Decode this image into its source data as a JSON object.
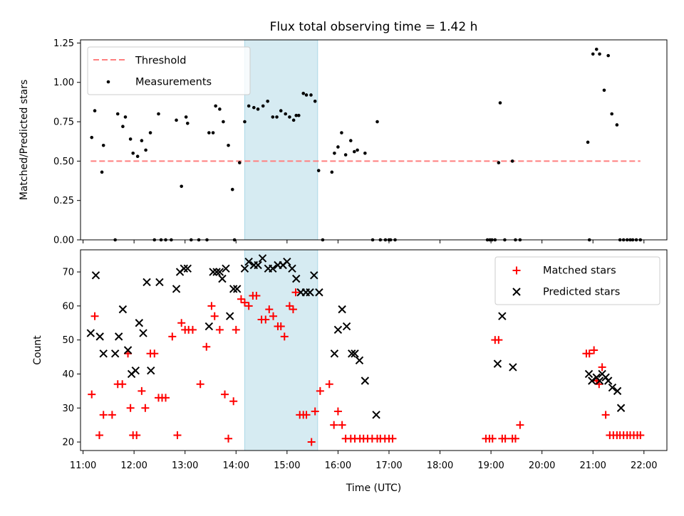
{
  "colors": {
    "threshold": "#ff7f7f",
    "measurements": "#000000",
    "matched": "#ff0000",
    "predicted": "#000000",
    "shade": "#add8e6"
  },
  "chart_data": [
    {
      "type": "scatter",
      "title": "Flux total observing time = 1.42 h",
      "xlabel": "",
      "ylabel": "Matched/Predicted stars",
      "xlim": [
        10.95,
        22.45
      ],
      "ylim": [
        0,
        1.27
      ],
      "yticks": [
        "0.00",
        "0.25",
        "0.50",
        "0.75",
        "1.00",
        "1.25"
      ],
      "shaded_span_x": [
        14.17,
        15.6
      ],
      "legend_position": "upper left",
      "threshold": {
        "name": "Threshold",
        "value": 0.5,
        "x": [
          11.15,
          21.93
        ]
      },
      "series": [
        {
          "name": "Measurements",
          "x": [
            11.17,
            11.23,
            11.37,
            11.4,
            11.63,
            11.68,
            11.78,
            11.83,
            11.93,
            11.98,
            12.07,
            12.15,
            12.23,
            12.32,
            12.4,
            12.48,
            12.53,
            12.62,
            12.73,
            12.83,
            12.93,
            13.02,
            13.05,
            13.12,
            13.27,
            13.43,
            13.47,
            13.55,
            13.6,
            13.68,
            13.75,
            13.85,
            13.93,
            13.97,
            14.07,
            14.17,
            14.25,
            14.35,
            14.43,
            14.53,
            14.62,
            14.72,
            14.8,
            14.88,
            14.97,
            15.05,
            15.13,
            15.18,
            15.23,
            15.32,
            15.38,
            15.47,
            15.55,
            15.62,
            15.7,
            15.88,
            15.93,
            16.0,
            16.07,
            16.15,
            16.25,
            16.32,
            16.38,
            16.53,
            16.68,
            16.77,
            16.83,
            16.93,
            17.0,
            17.03,
            17.12,
            18.93,
            18.98,
            19.02,
            19.08,
            19.15,
            19.18,
            19.27,
            19.42,
            19.48,
            19.57,
            20.9,
            20.93,
            21.0,
            21.07,
            21.13,
            21.22,
            21.3,
            21.37,
            21.47,
            21.53,
            21.6,
            21.67,
            21.73,
            21.78,
            21.85,
            21.93
          ],
          "y": [
            0.65,
            0.82,
            0.43,
            0.6,
            0.0,
            0.8,
            0.72,
            0.78,
            0.64,
            0.55,
            0.53,
            0.63,
            0.57,
            0.68,
            0.0,
            0.8,
            0.0,
            0.0,
            0.0,
            0.76,
            0.34,
            0.78,
            0.74,
            0.0,
            0.0,
            0.0,
            0.68,
            0.68,
            0.85,
            0.83,
            0.75,
            0.6,
            0.32,
            0.0,
            0.49,
            0.75,
            0.85,
            0.84,
            0.83,
            0.85,
            0.88,
            0.78,
            0.78,
            0.82,
            0.8,
            0.78,
            0.76,
            0.79,
            0.79,
            0.93,
            0.92,
            0.92,
            0.88,
            0.44,
            0.0,
            0.43,
            0.55,
            0.59,
            0.68,
            0.54,
            0.63,
            0.56,
            0.57,
            0.55,
            0.0,
            0.75,
            0.0,
            0.0,
            0.0,
            0.0,
            0.0,
            0.0,
            0.0,
            0.0,
            0.0,
            0.49,
            0.87,
            0.0,
            0.5,
            0.0,
            0.0,
            0.62,
            0.0,
            1.18,
            1.21,
            1.18,
            0.95,
            1.17,
            0.8,
            0.73,
            0.0,
            0.0,
            0.0,
            0.0,
            0.0,
            0.0,
            0.0
          ]
        }
      ]
    },
    {
      "type": "scatter",
      "title": "",
      "xlabel": "Time (UTC)",
      "ylabel": "Count",
      "xlim": [
        10.95,
        22.45
      ],
      "ylim": [
        17.5,
        76.5
      ],
      "yticks": [
        "20",
        "30",
        "40",
        "50",
        "60",
        "70"
      ],
      "xticks": [
        "11:00",
        "12:00",
        "13:00",
        "14:00",
        "15:00",
        "16:00",
        "17:00",
        "18:00",
        "19:00",
        "20:00",
        "21:00",
        "22:00"
      ],
      "shaded_span_x": [
        14.17,
        15.6
      ],
      "legend_position": "upper right",
      "series": [
        {
          "name": "Matched stars",
          "marker": "plus",
          "x": [
            11.17,
            11.23,
            11.32,
            11.4,
            11.57,
            11.68,
            11.77,
            11.88,
            11.93,
            11.98,
            12.05,
            12.15,
            12.22,
            12.32,
            12.4,
            12.48,
            12.55,
            12.62,
            12.75,
            12.85,
            12.93,
            13.0,
            13.07,
            13.15,
            13.3,
            13.42,
            13.52,
            13.58,
            13.68,
            13.78,
            13.85,
            13.95,
            14.0,
            14.1,
            14.17,
            14.25,
            14.33,
            14.4,
            14.5,
            14.58,
            14.65,
            14.73,
            14.82,
            14.88,
            14.95,
            15.05,
            15.12,
            15.17,
            15.25,
            15.32,
            15.38,
            15.48,
            15.55,
            15.65,
            15.83,
            15.92,
            16.0,
            16.08,
            16.15,
            16.25,
            16.33,
            16.43,
            16.5,
            16.58,
            16.67,
            16.77,
            16.83,
            16.92,
            17.0,
            17.07,
            18.9,
            18.97,
            19.03,
            19.08,
            19.15,
            19.22,
            19.28,
            19.42,
            19.48,
            19.57,
            20.87,
            20.93,
            21.02,
            21.07,
            21.12,
            21.18,
            21.25,
            21.33,
            21.4,
            21.47,
            21.53,
            21.6,
            21.67,
            21.73,
            21.8,
            21.87,
            21.93
          ],
          "y": [
            34,
            57,
            22,
            28,
            28,
            37,
            37,
            46,
            30,
            22,
            22,
            35,
            30,
            46,
            46,
            33,
            33,
            33,
            51,
            22,
            55,
            53,
            53,
            53,
            37,
            48,
            60,
            57,
            53,
            34,
            21,
            32,
            53,
            62,
            61,
            60,
            63,
            63,
            56,
            56,
            59,
            57,
            54,
            54,
            51,
            60,
            59,
            64,
            28,
            28,
            28,
            20,
            29,
            35,
            37,
            25,
            29,
            25,
            21,
            21,
            21,
            21,
            21,
            21,
            21,
            21,
            21,
            21,
            21,
            21,
            21,
            21,
            21,
            50,
            50,
            21,
            21,
            21,
            21,
            25,
            46,
            46,
            47,
            38,
            37,
            42,
            28,
            22,
            22,
            22,
            22,
            22,
            22,
            22,
            22,
            22,
            22
          ]
        },
        {
          "name": "Predicted stars",
          "marker": "x",
          "x": [
            11.15,
            11.25,
            11.33,
            11.4,
            11.63,
            11.7,
            11.78,
            11.88,
            11.95,
            12.03,
            12.1,
            12.18,
            12.25,
            12.33,
            12.5,
            12.83,
            12.9,
            12.98,
            13.05,
            13.47,
            13.55,
            13.62,
            13.68,
            13.73,
            13.8,
            13.88,
            13.95,
            14.02,
            14.17,
            14.25,
            14.35,
            14.43,
            14.52,
            14.63,
            14.72,
            14.82,
            14.92,
            15.0,
            15.1,
            15.18,
            15.27,
            15.37,
            15.45,
            15.53,
            15.63,
            15.93,
            16.0,
            16.08,
            16.17,
            16.27,
            16.33,
            16.42,
            16.53,
            16.75,
            19.13,
            19.22,
            19.43,
            20.92,
            20.98,
            21.07,
            21.13,
            21.18,
            21.25,
            21.3,
            21.38,
            21.48,
            21.55
          ],
          "y": [
            52,
            69,
            51,
            46,
            46,
            51,
            59,
            47,
            40,
            41,
            55,
            52,
            67,
            41,
            67,
            65,
            70,
            71,
            71,
            54,
            70,
            70,
            70,
            68,
            71,
            57,
            65,
            65,
            71,
            73,
            72,
            72,
            74,
            71,
            71,
            72,
            72,
            73,
            71,
            68,
            64,
            64,
            64,
            69,
            64,
            46,
            53,
            59,
            54,
            46,
            46,
            44,
            38,
            28,
            43,
            57,
            42,
            40,
            38,
            39,
            38,
            40,
            39,
            38,
            36,
            35,
            30
          ]
        }
      ]
    }
  ]
}
